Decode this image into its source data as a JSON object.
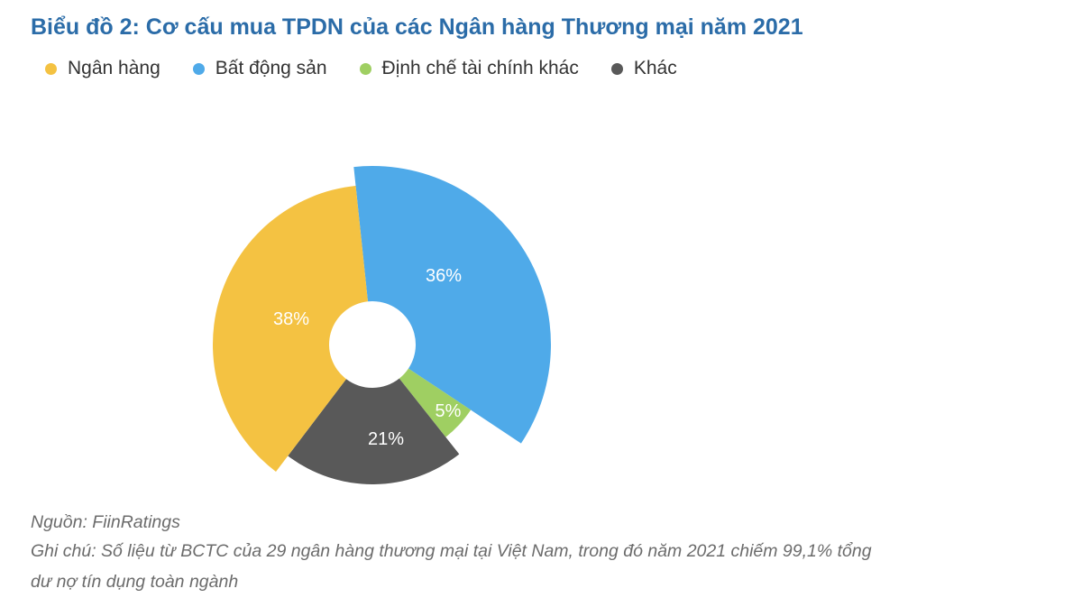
{
  "chart_data": {
    "type": "pie",
    "variant": "variable-radius donut",
    "title": "Biểu đồ 2: Cơ cấu mua TPDN của các Ngân hàng Thương mại năm 2021",
    "legend_position": "top-left",
    "series": [
      {
        "name": "Ngân hàng",
        "value": 38,
        "label": "38%",
        "color": "#f4c242"
      },
      {
        "name": "Bất động sản",
        "value": 36,
        "label": "36%",
        "color": "#4faae9"
      },
      {
        "name": "Định chế tài chính khác",
        "value": 5,
        "label": "5%",
        "color": "#9fcf62"
      },
      {
        "name": "Khác",
        "value": 21,
        "label": "21%",
        "color": "#595959"
      }
    ]
  },
  "footer": {
    "source": "Nguồn: FiinRatings",
    "note_line1": "Ghi chú: Số liệu từ BCTC của 29 ngân hàng thương mại tại Việt Nam, trong đó năm 2021 chiếm 99,1% tổng",
    "note_line2": "dư nợ tín dụng toàn ngành"
  }
}
